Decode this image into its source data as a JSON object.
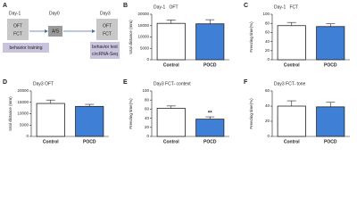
{
  "timeline": {
    "letter": "A",
    "days": [
      "Day-1",
      "Day0",
      "Day3"
    ],
    "day1_box": [
      "OFT",
      "FCT"
    ],
    "day0_box": "A/S",
    "day3_box": [
      "OFT",
      "FCT"
    ],
    "training": "behavior training",
    "testing": [
      "behavior test",
      "circRNA-Seq"
    ]
  },
  "chart_data": [
    {
      "type": "bar",
      "letter": "B",
      "title": "Day-1   OFT",
      "ylabel": "total distance (mm)",
      "categories": [
        "Control",
        "POCD"
      ],
      "values": [
        16000,
        15800
      ],
      "errors": [
        1500,
        1800
      ],
      "colors": [
        "#ffffff",
        "#3f7fd6"
      ],
      "ylim": [
        0,
        20000
      ],
      "yticks": [
        0,
        5000,
        10000,
        15000,
        20000
      ]
    },
    {
      "type": "bar",
      "letter": "C",
      "title": "Day-1   FCT",
      "ylabel": "Freezing time(%)",
      "categories": [
        "Control",
        "POCD"
      ],
      "values": [
        75,
        73
      ],
      "errors": [
        7,
        6
      ],
      "colors": [
        "#ffffff",
        "#3f7fd6"
      ],
      "ylim": [
        0,
        100
      ],
      "yticks": [
        0,
        20,
        40,
        60,
        80,
        100
      ]
    },
    {
      "type": "bar",
      "letter": "D",
      "title": "Day3 OFT",
      "ylabel": "total distance (mm)",
      "categories": [
        "Control",
        "POCD"
      ],
      "values": [
        14500,
        13200
      ],
      "errors": [
        1500,
        900
      ],
      "colors": [
        "#ffffff",
        "#3f7fd6"
      ],
      "ylim": [
        0,
        20000
      ],
      "yticks": [
        0,
        5000,
        10000,
        15000,
        20000
      ]
    },
    {
      "type": "bar",
      "letter": "E",
      "title": "Day3 FCT- context",
      "ylabel": "Freezing time(%)",
      "categories": [
        "Control",
        "POCD"
      ],
      "values": [
        62,
        38
      ],
      "errors": [
        5,
        5
      ],
      "significance": [
        null,
        "**"
      ],
      "colors": [
        "#ffffff",
        "#3f7fd6"
      ],
      "ylim": [
        0,
        100
      ],
      "yticks": [
        0,
        20,
        40,
        60,
        80,
        100
      ]
    },
    {
      "type": "bar",
      "letter": "F",
      "title": "Day3 FCT- tone",
      "ylabel": "Freezing time(%)",
      "categories": [
        "Control",
        "POCD"
      ],
      "values": [
        40,
        39
      ],
      "errors": [
        7,
        6
      ],
      "colors": [
        "#ffffff",
        "#3f7fd6"
      ],
      "ylim": [
        0,
        60
      ],
      "yticks": [
        0,
        20,
        40,
        60
      ]
    }
  ]
}
